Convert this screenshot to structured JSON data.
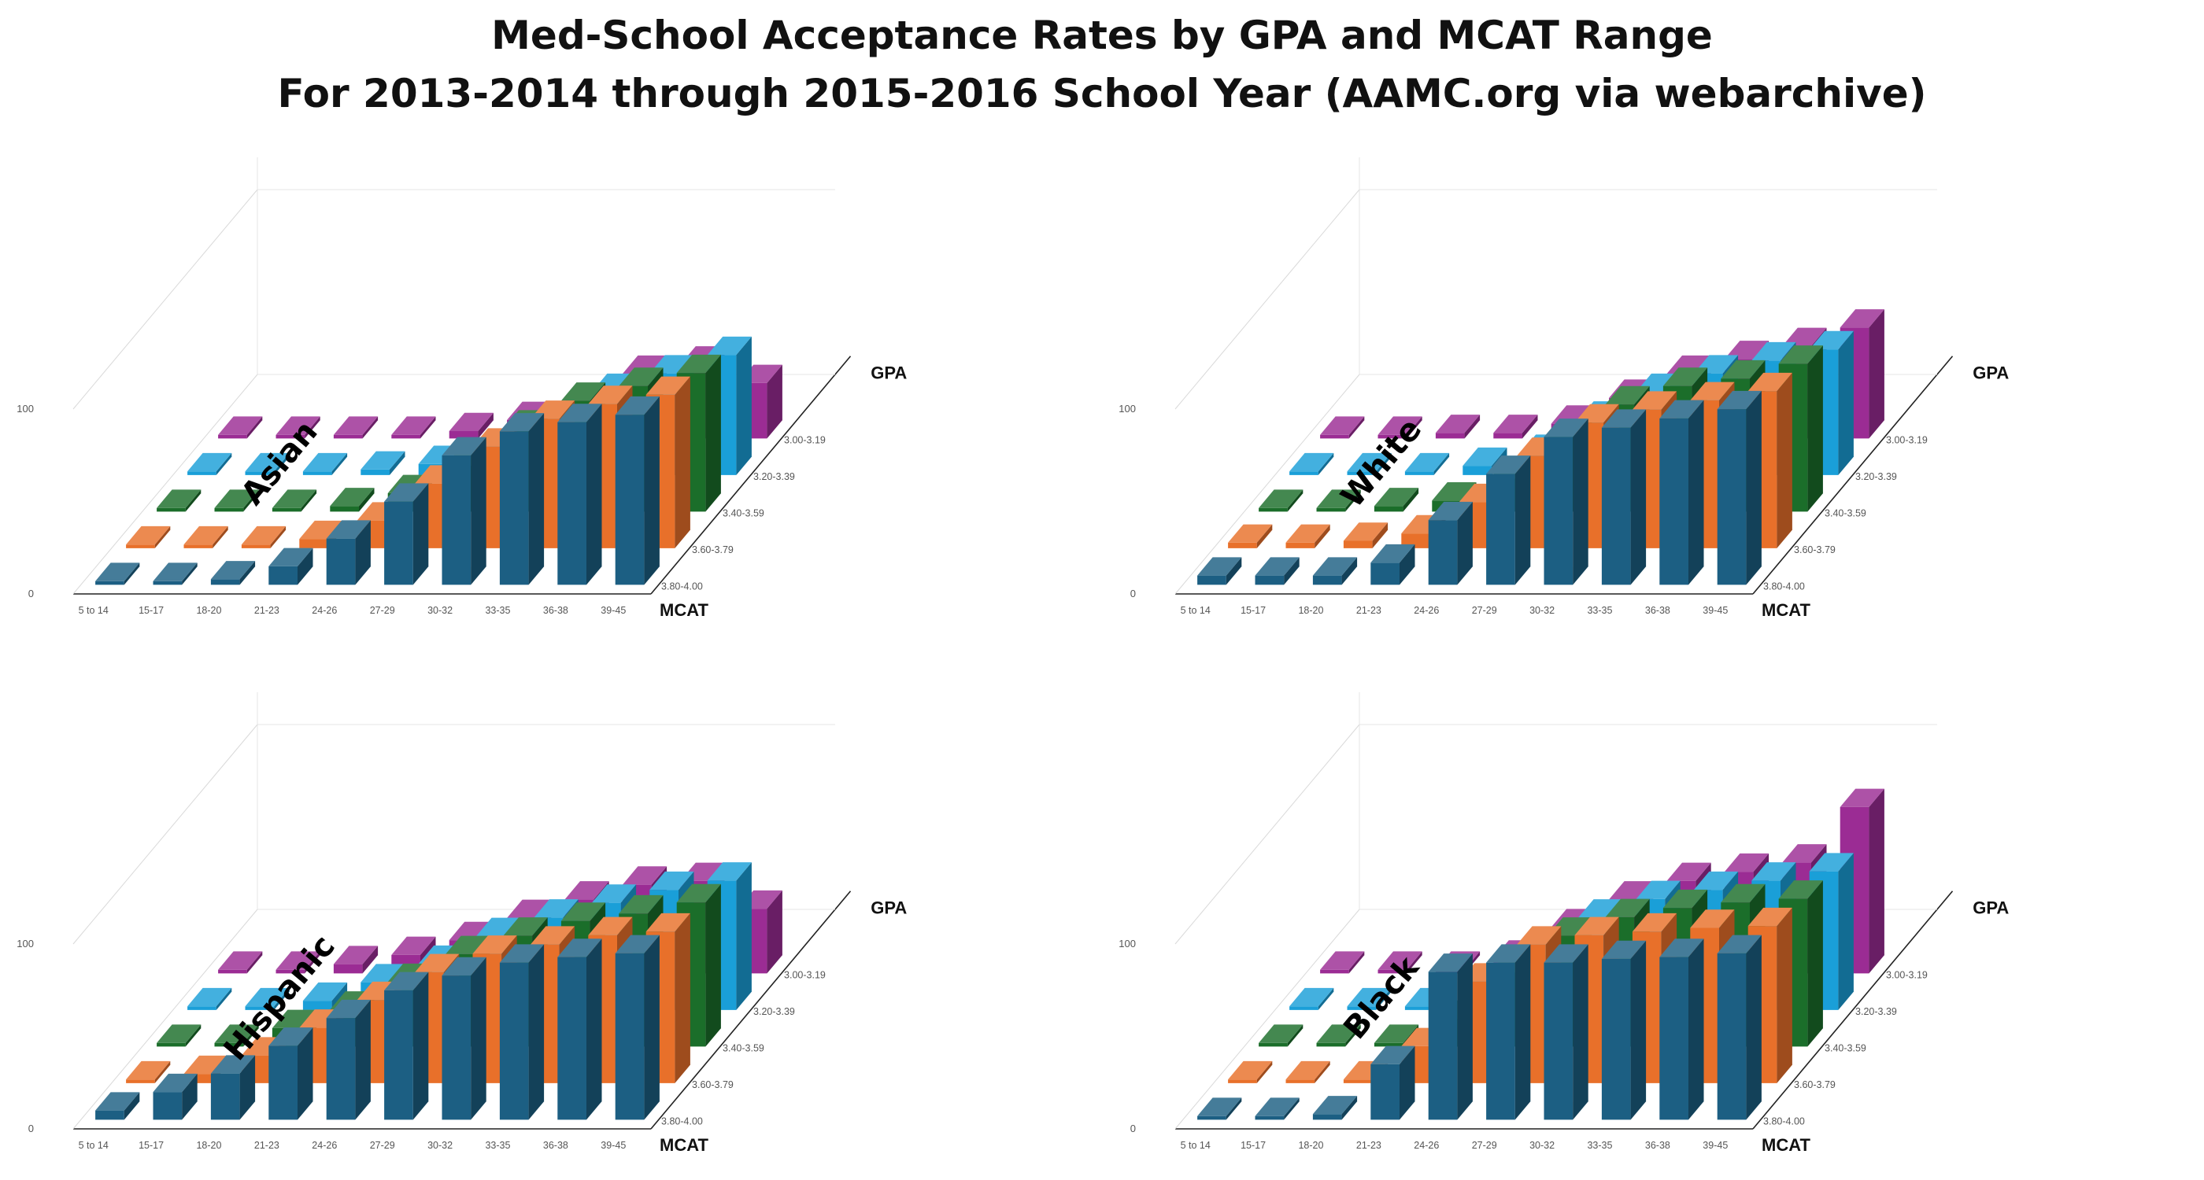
{
  "title": {
    "line1": "Med-School Acceptance Rates by GPA and MCAT Range",
    "line2": "For 2013-2014 through 2015-2016 School Year (AAMC.org via webarchive)"
  },
  "chart_data": {
    "type": "bar",
    "subtype": "3d-bar",
    "mcat_axis_title": "MCAT",
    "gpa_axis_title": "GPA",
    "categories": [
      "5 to 14",
      "15-17",
      "18-20",
      "21-23",
      "24-26",
      "27-29",
      "30-32",
      "33-35",
      "36-38",
      "39-45"
    ],
    "gpa_ranges": [
      "3.80-4.00",
      "3.60-3.79",
      "3.40-3.59",
      "3.20-3.39",
      "3.00-3.19"
    ],
    "gpa_colors": [
      "#1c5f83",
      "#e8702a",
      "#1b6e2a",
      "#1a9fd8",
      "#9b2c94"
    ],
    "zlim": [
      0,
      100
    ],
    "z_ticks": [
      "0",
      "100"
    ],
    "panels": [
      {
        "name": "Asian",
        "series": [
          {
            "name": "3.80-4.00",
            "values": [
              2,
              2,
              3,
              10,
              25,
              45,
              70,
              83,
              88,
              92
            ]
          },
          {
            "name": "3.60-3.79",
            "values": [
              2,
              2,
              2,
              5,
              15,
              35,
              55,
              70,
              78,
              83
            ]
          },
          {
            "name": "3.40-3.59",
            "values": [
              2,
              2,
              2,
              3,
              10,
              25,
              45,
              60,
              68,
              75
            ]
          },
          {
            "name": "3.20-3.39",
            "values": [
              2,
              2,
              2,
              3,
              6,
              15,
              30,
              45,
              55,
              65
            ]
          },
          {
            "name": "3.00-3.19",
            "values": [
              2,
              2,
              2,
              2,
              4,
              10,
              20,
              35,
              40,
              30
            ]
          }
        ]
      },
      {
        "name": "White",
        "series": [
          {
            "name": "3.80-4.00",
            "values": [
              5,
              5,
              5,
              12,
              35,
              60,
              80,
              85,
              90,
              95
            ]
          },
          {
            "name": "3.60-3.79",
            "values": [
              3,
              3,
              4,
              8,
              25,
              50,
              68,
              75,
              80,
              85
            ]
          },
          {
            "name": "3.40-3.59",
            "values": [
              2,
              2,
              3,
              6,
              18,
              40,
              58,
              68,
              72,
              80
            ]
          },
          {
            "name": "3.20-3.39",
            "values": [
              2,
              2,
              2,
              5,
              12,
              30,
              45,
              55,
              62,
              68
            ]
          },
          {
            "name": "3.00-3.19",
            "values": [
              2,
              2,
              3,
              3,
              8,
              22,
              35,
              43,
              50,
              60
            ]
          }
        ]
      },
      {
        "name": "Hispanic",
        "series": [
          {
            "name": "3.80-4.00",
            "values": [
              5,
              15,
              25,
              40,
              55,
              70,
              78,
              85,
              88,
              90
            ]
          },
          {
            "name": "3.60-3.79",
            "values": [
              2,
              5,
              15,
              30,
              45,
              60,
              70,
              75,
              80,
              82
            ]
          },
          {
            "name": "3.40-3.59",
            "values": [
              2,
              2,
              10,
              20,
              35,
              50,
              60,
              68,
              72,
              78
            ]
          },
          {
            "name": "3.20-3.39",
            "values": [
              2,
              2,
              5,
              15,
              25,
              40,
              50,
              58,
              65,
              70
            ]
          },
          {
            "name": "3.00-3.19",
            "values": [
              2,
              2,
              5,
              10,
              18,
              30,
              40,
              48,
              50,
              35
            ]
          }
        ]
      },
      {
        "name": "Black",
        "series": [
          {
            "name": "3.80-4.00",
            "values": [
              2,
              2,
              3,
              30,
              80,
              85,
              85,
              87,
              88,
              90
            ]
          },
          {
            "name": "3.60-3.79",
            "values": [
              2,
              2,
              2,
              20,
              55,
              75,
              80,
              82,
              84,
              85
            ]
          },
          {
            "name": "3.40-3.59",
            "values": [
              2,
              2,
              2,
              15,
              40,
              60,
              70,
              75,
              78,
              80
            ]
          },
          {
            "name": "3.20-3.39",
            "values": [
              2,
              2,
              2,
              10,
              30,
              50,
              60,
              65,
              70,
              75
            ]
          },
          {
            "name": "3.00-3.19",
            "values": [
              2,
              2,
              2,
              8,
              25,
              40,
              50,
              55,
              60,
              90
            ]
          }
        ]
      }
    ]
  }
}
